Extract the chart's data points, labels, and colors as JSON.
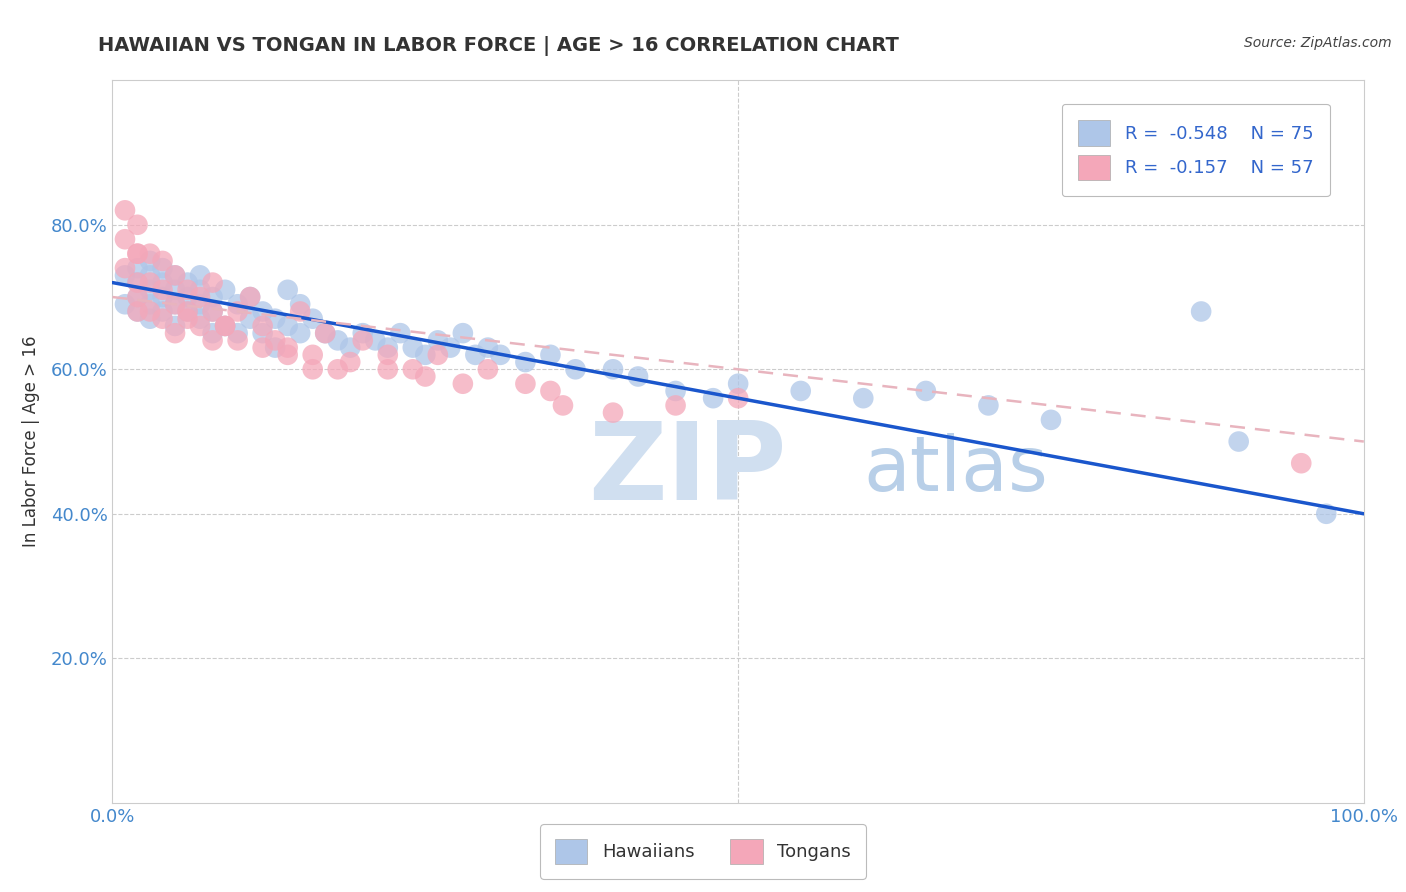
{
  "title": "HAWAIIAN VS TONGAN IN LABOR FORCE | AGE > 16 CORRELATION CHART",
  "source_text": "Source: ZipAtlas.com",
  "ylabel": "In Labor Force | Age > 16",
  "xlim": [
    0.0,
    1.0
  ],
  "ylim": [
    0.0,
    1.0
  ],
  "x_ticks": [
    0.0,
    0.2,
    0.4,
    0.6,
    0.8,
    1.0
  ],
  "y_ticks": [
    0.0,
    0.2,
    0.4,
    0.6,
    0.8,
    1.0
  ],
  "hawaiian_R": -0.548,
  "hawaiian_N": 75,
  "tongan_R": -0.157,
  "tongan_N": 57,
  "hawaiian_color": "#aec6e8",
  "tongan_color": "#f4a7b9",
  "hawaiian_line_color": "#1a56cc",
  "tongan_line_color": "#e8b4be",
  "background_color": "#ffffff",
  "grid_color": "#cccccc",
  "title_color": "#333333",
  "watermark_zip_color": "#d0dff0",
  "watermark_atlas_color": "#b8cfe8",
  "legend_text_color": "#3366cc",
  "tick_color": "#4488cc",
  "hawaiian_x": [
    0.01,
    0.01,
    0.02,
    0.02,
    0.02,
    0.02,
    0.03,
    0.03,
    0.03,
    0.03,
    0.03,
    0.04,
    0.04,
    0.04,
    0.04,
    0.05,
    0.05,
    0.05,
    0.05,
    0.06,
    0.06,
    0.06,
    0.07,
    0.07,
    0.07,
    0.07,
    0.08,
    0.08,
    0.08,
    0.09,
    0.09,
    0.1,
    0.1,
    0.11,
    0.11,
    0.12,
    0.12,
    0.13,
    0.13,
    0.14,
    0.14,
    0.15,
    0.15,
    0.16,
    0.17,
    0.18,
    0.19,
    0.2,
    0.21,
    0.22,
    0.23,
    0.24,
    0.25,
    0.26,
    0.27,
    0.28,
    0.29,
    0.3,
    0.31,
    0.33,
    0.35,
    0.37,
    0.4,
    0.42,
    0.45,
    0.48,
    0.5,
    0.55,
    0.6,
    0.65,
    0.7,
    0.75,
    0.87,
    0.9,
    0.97
  ],
  "hawaiian_y": [
    0.73,
    0.69,
    0.74,
    0.72,
    0.7,
    0.68,
    0.75,
    0.73,
    0.71,
    0.69,
    0.67,
    0.74,
    0.72,
    0.7,
    0.68,
    0.73,
    0.71,
    0.69,
    0.66,
    0.72,
    0.7,
    0.68,
    0.73,
    0.71,
    0.69,
    0.67,
    0.7,
    0.68,
    0.65,
    0.71,
    0.66,
    0.69,
    0.65,
    0.7,
    0.67,
    0.68,
    0.65,
    0.67,
    0.63,
    0.66,
    0.71,
    0.69,
    0.65,
    0.67,
    0.65,
    0.64,
    0.63,
    0.65,
    0.64,
    0.63,
    0.65,
    0.63,
    0.62,
    0.64,
    0.63,
    0.65,
    0.62,
    0.63,
    0.62,
    0.61,
    0.62,
    0.6,
    0.6,
    0.59,
    0.57,
    0.56,
    0.58,
    0.57,
    0.56,
    0.57,
    0.55,
    0.53,
    0.68,
    0.5,
    0.4
  ],
  "tongan_x": [
    0.01,
    0.01,
    0.01,
    0.02,
    0.02,
    0.02,
    0.02,
    0.02,
    0.02,
    0.03,
    0.03,
    0.03,
    0.04,
    0.04,
    0.04,
    0.05,
    0.05,
    0.05,
    0.06,
    0.06,
    0.07,
    0.07,
    0.08,
    0.08,
    0.09,
    0.1,
    0.11,
    0.12,
    0.13,
    0.14,
    0.15,
    0.16,
    0.17,
    0.18,
    0.2,
    0.22,
    0.24,
    0.26,
    0.28,
    0.3,
    0.33,
    0.36,
    0.4,
    0.45,
    0.5,
    0.12,
    0.08,
    0.16,
    0.22,
    0.1,
    0.14,
    0.19,
    0.25,
    0.35,
    0.09,
    0.06,
    0.95
  ],
  "tongan_y": [
    0.82,
    0.78,
    0.74,
    0.8,
    0.76,
    0.72,
    0.68,
    0.76,
    0.7,
    0.76,
    0.72,
    0.68,
    0.75,
    0.71,
    0.67,
    0.73,
    0.69,
    0.65,
    0.71,
    0.67,
    0.7,
    0.66,
    0.68,
    0.72,
    0.66,
    0.68,
    0.7,
    0.66,
    0.64,
    0.63,
    0.68,
    0.62,
    0.65,
    0.6,
    0.64,
    0.62,
    0.6,
    0.62,
    0.58,
    0.6,
    0.58,
    0.55,
    0.54,
    0.55,
    0.56,
    0.63,
    0.64,
    0.6,
    0.6,
    0.64,
    0.62,
    0.61,
    0.59,
    0.57,
    0.66,
    0.68,
    0.47
  ],
  "figsize": [
    14.06,
    8.92
  ],
  "dpi": 100
}
